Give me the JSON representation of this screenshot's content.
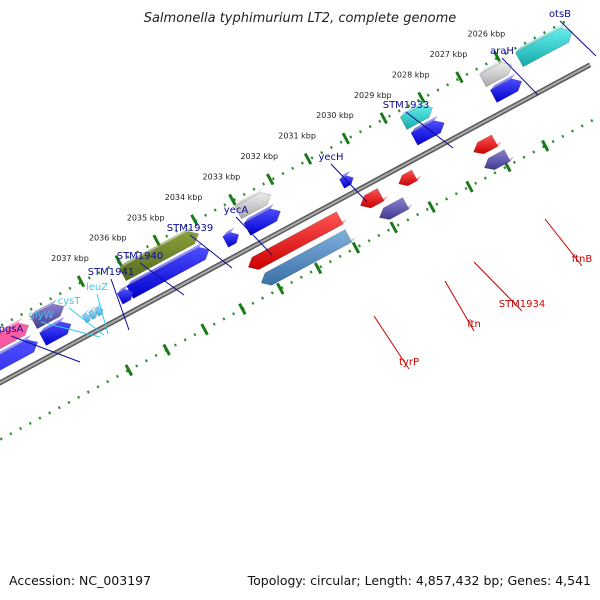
{
  "title": "Salmonella typhimurium LT2, complete genome",
  "footer": {
    "accession": "Accession: NC_003197",
    "summary": "Topology: circular; Length: 4,857,432 bp; Genes: 4,541"
  },
  "ticks": [
    "2026 kbp",
    "2027 kbp",
    "2028 kbp",
    "2029 kbp",
    "2030 kbp",
    "2031 kbp",
    "2032 kbp",
    "2033 kbp",
    "2034 kbp",
    "2035 kbp",
    "2036 kbp",
    "2037 kbp"
  ],
  "forward_genes": [
    "otsB",
    "araH",
    "STM1933",
    "yecH",
    "yecA",
    "STM1939",
    "STM1940",
    "STM1941",
    "leuZ",
    "cysT",
    "glyW",
    "pgsA"
  ],
  "reverse_genes": [
    "ftnB",
    "STM1934",
    "ftn",
    "tyrP"
  ],
  "colors": {
    "forward_label": "#0a0a99",
    "rna_label": "#33ccee",
    "reverse_label": "#cc0000",
    "backbone": "#8a8a8a",
    "tick_dots": "#2e8b2e"
  }
}
